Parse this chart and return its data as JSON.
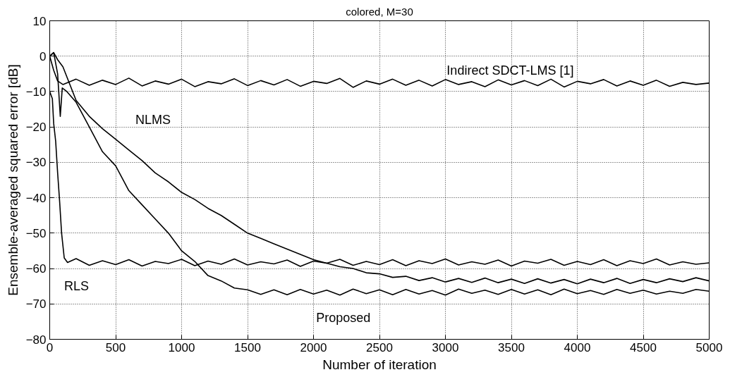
{
  "chart_data": {
    "type": "line",
    "title": "colored, M=30",
    "xlabel": "Number of iteration",
    "ylabel": "Ensemble-averaged squared error [dB]",
    "xlim": [
      0,
      5000
    ],
    "xticks": [
      0,
      500,
      1000,
      1500,
      2000,
      2500,
      3000,
      3500,
      4000,
      4500,
      5000
    ],
    "ylim": [
      -80,
      10
    ],
    "yticks": [
      -80,
      -70,
      -60,
      -50,
      -40,
      -30,
      -20,
      -10,
      0,
      10
    ],
    "grid": true,
    "marker": "none",
    "line_style": "solid",
    "series": [
      {
        "name": "Indirect SDCT-LMS [1]",
        "color": "#000000",
        "x": [
          0,
          30,
          60,
          100,
          200,
          300,
          400,
          500,
          600,
          700,
          800,
          900,
          1000,
          1100,
          1200,
          1300,
          1400,
          1500,
          1600,
          1700,
          1800,
          1900,
          2000,
          2100,
          2200,
          2300,
          2400,
          2500,
          2600,
          2700,
          2800,
          2900,
          3000,
          3100,
          3200,
          3300,
          3400,
          3500,
          3600,
          3700,
          3800,
          3900,
          4000,
          4100,
          4200,
          4300,
          4400,
          4500,
          4600,
          4700,
          4800,
          4900,
          5000
        ],
        "values": [
          0,
          -4,
          -7,
          -8,
          -6.5,
          -8.2,
          -6.8,
          -8,
          -6.2,
          -8.4,
          -7,
          -7.9,
          -6.5,
          -8.6,
          -7.2,
          -7.8,
          -6.4,
          -8.3,
          -6.9,
          -8.1,
          -6.6,
          -8.5,
          -7.1,
          -7.7,
          -6.3,
          -8.8,
          -7,
          -7.9,
          -6.5,
          -8.2,
          -6.8,
          -8.4,
          -6.6,
          -8,
          -7.2,
          -8.6,
          -6.7,
          -8.1,
          -6.9,
          -8.3,
          -6.5,
          -8.7,
          -7.1,
          -7.8,
          -6.6,
          -8.4,
          -7,
          -8.2,
          -6.8,
          -8.5,
          -7.4,
          -8,
          -7.6
        ]
      },
      {
        "name": "NLMS",
        "color": "#000000",
        "x": [
          0,
          30,
          60,
          100,
          200,
          300,
          400,
          500,
          600,
          700,
          800,
          900,
          1000,
          1100,
          1200,
          1300,
          1400,
          1500,
          1600,
          1700,
          1800,
          1900,
          2000,
          2100,
          2200,
          2300,
          2400,
          2500,
          2600,
          2700,
          2800,
          2900,
          3000,
          3100,
          3200,
          3300,
          3400,
          3500,
          3600,
          3700,
          3800,
          3900,
          4000,
          4100,
          4200,
          4300,
          4400,
          4500,
          4600,
          4700,
          4800,
          4900,
          5000
        ],
        "values": [
          0,
          1,
          -1,
          -3,
          -12.5,
          -17,
          -20.5,
          -23.5,
          -26.5,
          -29.5,
          -33,
          -35.5,
          -38.5,
          -40.5,
          -43,
          -45,
          -47.5,
          -50,
          -51.5,
          -53,
          -54.5,
          -56,
          -57.5,
          -58.5,
          -59.5,
          -60,
          -61.2,
          -61.5,
          -62.5,
          -62.2,
          -63.4,
          -62.6,
          -63.8,
          -62.8,
          -63.9,
          -62.7,
          -64,
          -63,
          -64.2,
          -62.9,
          -64.1,
          -63.1,
          -64.3,
          -63,
          -64,
          -62.8,
          -64.2,
          -63.1,
          -64,
          -62.9,
          -63.7,
          -62.6,
          -63.5
        ]
      },
      {
        "name": "RLS",
        "color": "#000000",
        "x": [
          0,
          20,
          30,
          45,
          60,
          75,
          90,
          110,
          135,
          200,
          300,
          400,
          500,
          600,
          700,
          800,
          900,
          1000,
          1100,
          1200,
          1300,
          1400,
          1500,
          1600,
          1700,
          1800,
          1900,
          2000,
          2100,
          2200,
          2300,
          2400,
          2500,
          2600,
          2700,
          2800,
          2900,
          3000,
          3100,
          3200,
          3300,
          3400,
          3500,
          3600,
          3700,
          3800,
          3900,
          4000,
          4100,
          4200,
          4300,
          4400,
          4500,
          4600,
          4700,
          4800,
          4900,
          5000
        ],
        "values": [
          -10,
          -12,
          -19,
          -24,
          -33,
          -41,
          -50,
          -57,
          -58.3,
          -57.2,
          -59.1,
          -57.8,
          -58.9,
          -57.5,
          -59.3,
          -58,
          -58.6,
          -57.4,
          -59.2,
          -57.9,
          -58.8,
          -57.3,
          -59,
          -58.1,
          -58.7,
          -57.6,
          -59.4,
          -57.9,
          -58.5,
          -57.4,
          -59.1,
          -58,
          -58.9,
          -57.5,
          -59.2,
          -57.8,
          -58.6,
          -57.3,
          -59,
          -58.1,
          -58.8,
          -57.6,
          -59.3,
          -57.9,
          -58.5,
          -57.4,
          -59.1,
          -58,
          -58.9,
          -57.5,
          -59.2,
          -57.8,
          -58.6,
          -57.3,
          -59,
          -58.1,
          -58.8,
          -58.4
        ]
      },
      {
        "name": "Proposed",
        "color": "#000000",
        "x": [
          0,
          30,
          60,
          80,
          95,
          130,
          200,
          300,
          400,
          500,
          600,
          700,
          800,
          900,
          1000,
          1100,
          1200,
          1300,
          1400,
          1500,
          1600,
          1700,
          1800,
          1900,
          2000,
          2100,
          2200,
          2300,
          2400,
          2500,
          2600,
          2700,
          2800,
          2900,
          3000,
          3100,
          3200,
          3300,
          3400,
          3500,
          3600,
          3700,
          3800,
          3900,
          4000,
          4100,
          4200,
          4300,
          4400,
          4500,
          4600,
          4700,
          4800,
          4900,
          5000
        ],
        "values": [
          0,
          1,
          -5,
          -17,
          -9,
          -10,
          -13,
          -20,
          -27,
          -31,
          -38,
          -42,
          -46,
          -50,
          -55,
          -58,
          -62,
          -63.5,
          -65.5,
          -66,
          -67.3,
          -66,
          -67.4,
          -65.9,
          -67.2,
          -66.1,
          -67.5,
          -65.8,
          -67.1,
          -66,
          -67.4,
          -65.9,
          -67.2,
          -66.2,
          -67.5,
          -65.8,
          -67,
          -66.1,
          -67.3,
          -65.9,
          -67.2,
          -66,
          -67.4,
          -65.8,
          -67.1,
          -66.2,
          -67.3,
          -65.9,
          -67,
          -66.1,
          -67.2,
          -66.4,
          -67,
          -65.9,
          -66.4
        ]
      }
    ]
  }
}
